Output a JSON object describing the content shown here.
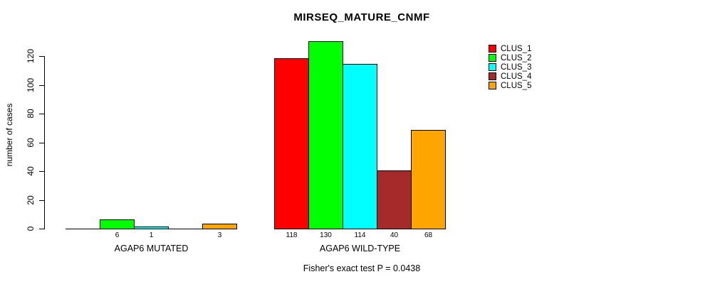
{
  "chart_data": {
    "type": "bar",
    "title": "MIRSEQ_MATURE_CNMF",
    "ylabel": "number of cases",
    "ylim": [
      0,
      130
    ],
    "yticks": [
      0,
      20,
      40,
      60,
      80,
      100,
      120
    ],
    "grid": false,
    "legend_position": "top-right",
    "series": [
      {
        "name": "CLUS_1",
        "color": "#FF0000"
      },
      {
        "name": "CLUS_2",
        "color": "#00FF00"
      },
      {
        "name": "CLUS_3",
        "color": "#00FFFF"
      },
      {
        "name": "CLUS_4",
        "color": "#A52A2A"
      },
      {
        "name": "CLUS_5",
        "color": "#FFA500"
      }
    ],
    "groups": [
      {
        "label": "AGAP6 MUTATED",
        "values": [
          0,
          6,
          1,
          0,
          3
        ]
      },
      {
        "label": "AGAP6 WILD-TYPE",
        "values": [
          118,
          130,
          114,
          40,
          68
        ]
      }
    ],
    "annotation": "Fisher's exact test P = 0.0438"
  }
}
